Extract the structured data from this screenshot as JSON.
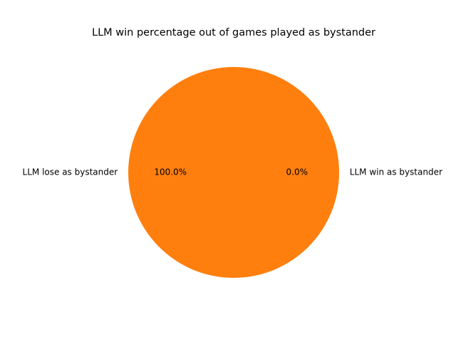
{
  "chart_data": {
    "type": "pie",
    "title": "LLM win percentage out of games played as bystander",
    "slices": [
      {
        "label": "LLM win as bystander",
        "value": 0.0,
        "pct_label": "0.0%",
        "color": "#1f77b4"
      },
      {
        "label": "LLM lose as bystander",
        "value": 100.0,
        "pct_label": "100.0%",
        "color": "#ff7f0e"
      }
    ]
  }
}
